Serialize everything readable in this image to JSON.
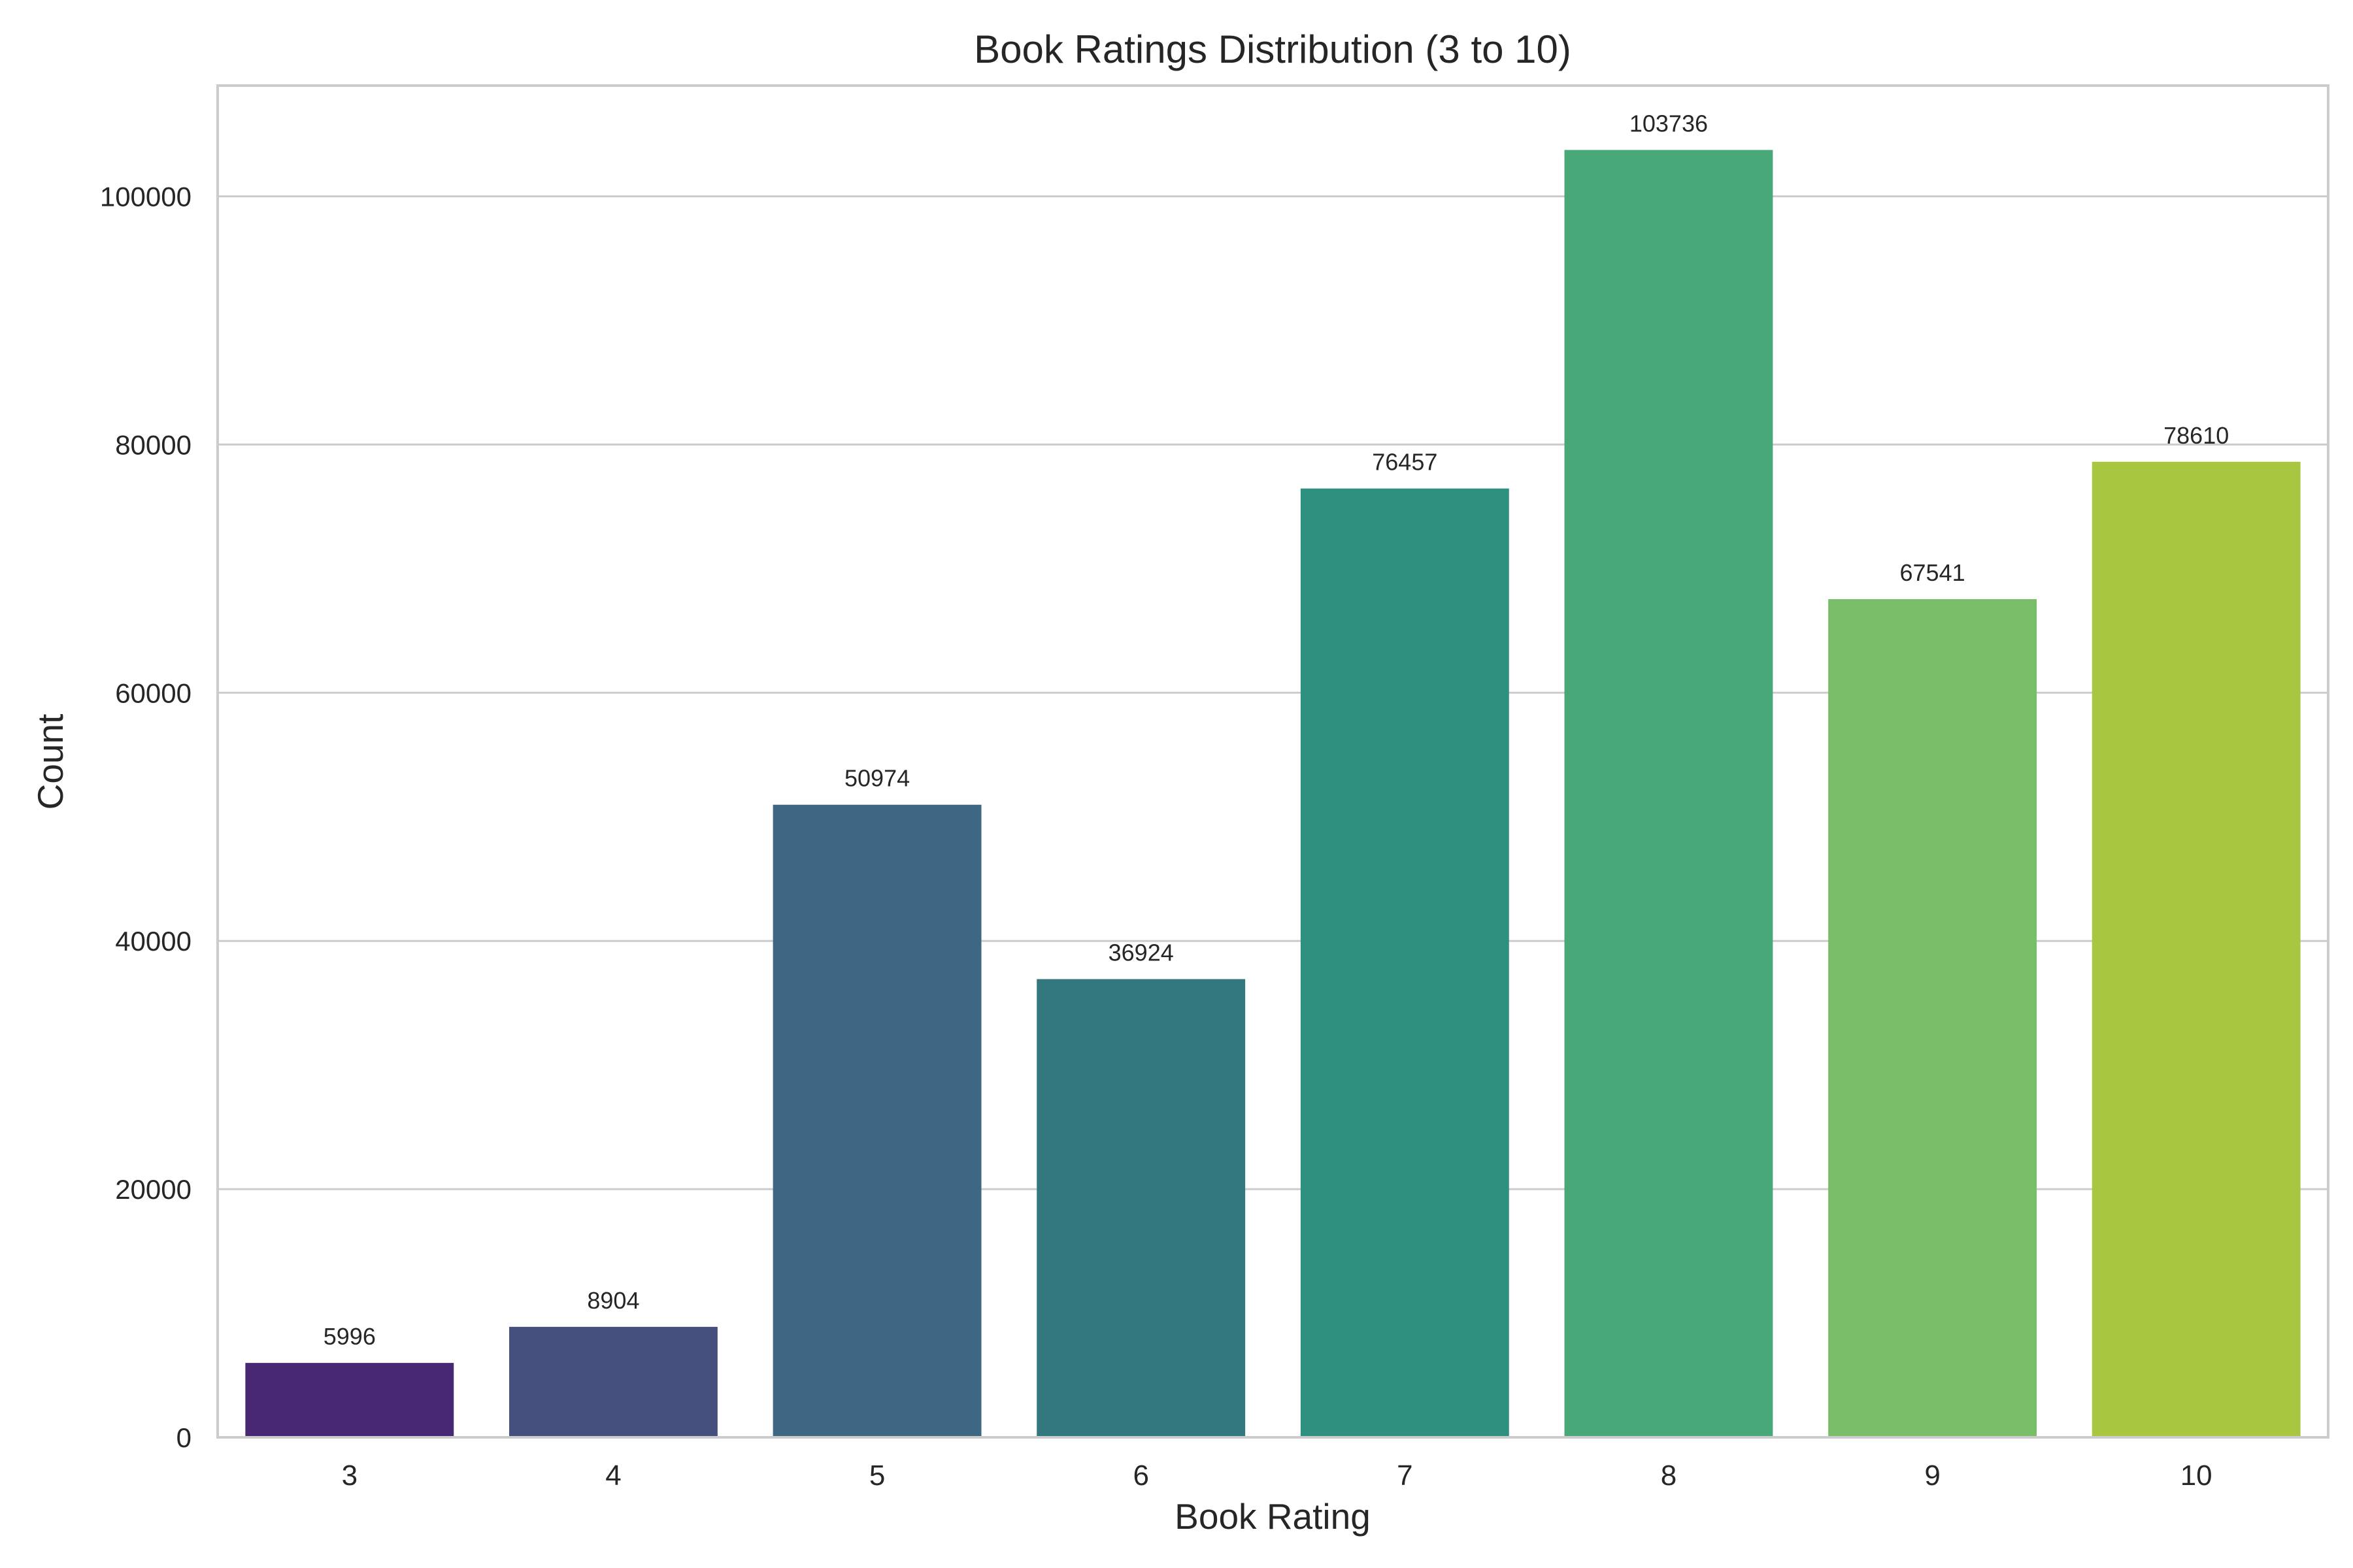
{
  "chart_data": {
    "type": "bar",
    "title": "Book Ratings Distribution (3 to 10)",
    "xlabel": "Book Rating",
    "ylabel": "Count",
    "categories": [
      "3",
      "4",
      "5",
      "6",
      "7",
      "8",
      "9",
      "10"
    ],
    "values": [
      5996,
      8904,
      50974,
      36924,
      76457,
      103736,
      67541,
      78610
    ],
    "data_labels": [
      "5996",
      "8904",
      "50974",
      "36924",
      "76457",
      "103736",
      "67541",
      "78610"
    ],
    "colors": [
      "#482872",
      "#46507f",
      "#3e6783",
      "#33787e",
      "#2e917f",
      "#48a878",
      "#78be69",
      "#a8c640"
    ],
    "yticks": [
      0,
      20000,
      40000,
      60000,
      80000,
      100000
    ],
    "ytick_labels": [
      "0",
      "20000",
      "40000",
      "60000",
      "80000",
      "100000"
    ],
    "ylim": [
      0,
      108923
    ],
    "grid": "horizontal",
    "legend": "none",
    "style": {
      "background": "#ffffff",
      "grid_color": "#cccccc",
      "spine_color": "#cccccc",
      "text_color": "#262626"
    }
  }
}
